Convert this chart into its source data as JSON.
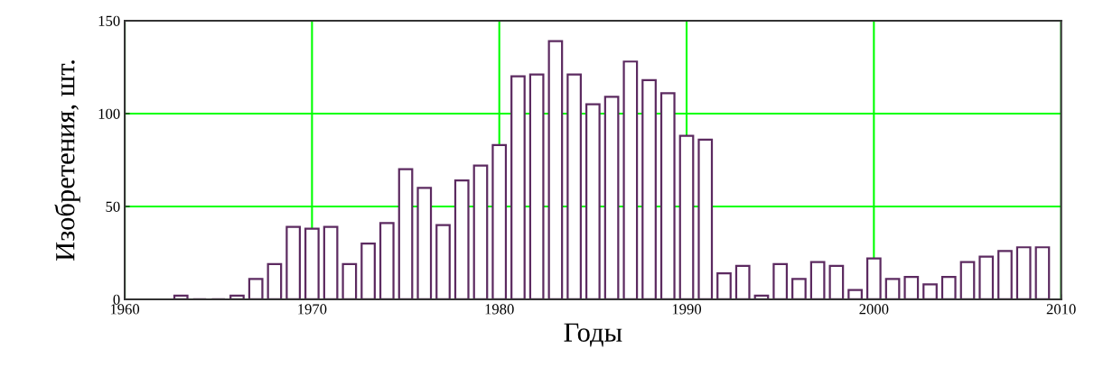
{
  "chart_data": {
    "type": "bar",
    "xlabel": "Годы",
    "ylabel": "Изобретения, шт.",
    "x": [
      1963,
      1964,
      1965,
      1966,
      1967,
      1968,
      1969,
      1970,
      1971,
      1972,
      1973,
      1974,
      1975,
      1976,
      1977,
      1978,
      1979,
      1980,
      1981,
      1982,
      1983,
      1984,
      1985,
      1986,
      1987,
      1988,
      1989,
      1990,
      1991,
      1992,
      1993,
      1994,
      1995,
      1996,
      1997,
      1998,
      1999,
      2000,
      2001,
      2002,
      2003,
      2004,
      2005,
      2006,
      2007,
      2008,
      2009
    ],
    "series": [
      {
        "color": "#5c2a60",
        "values": [
          2,
          0,
          0,
          2,
          11,
          19,
          39,
          38,
          39,
          19,
          30,
          41,
          70,
          60,
          40,
          64,
          72,
          83,
          120,
          121,
          139,
          121,
          105,
          109,
          128,
          118,
          111,
          88,
          86,
          14,
          18,
          2,
          19,
          11,
          20,
          18,
          5,
          22,
          11,
          12,
          8,
          12,
          20,
          23,
          26,
          28,
          28
        ]
      }
    ],
    "xlim": [
      1960,
      2010
    ],
    "xticks": [
      1960,
      1970,
      1980,
      1990,
      2000,
      2010
    ],
    "ylim": [
      0,
      150
    ],
    "yticks": [
      0,
      50,
      100,
      150
    ],
    "grid": true
  }
}
